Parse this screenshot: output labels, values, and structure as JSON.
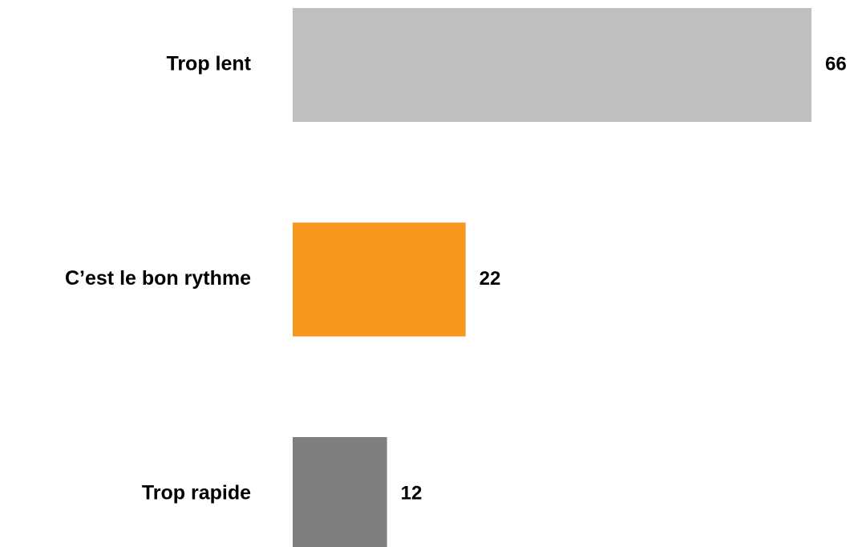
{
  "chart_data": {
    "type": "bar",
    "orientation": "horizontal",
    "categories": [
      "Trop lent",
      "C’est le bon rythme",
      "Trop rapide"
    ],
    "values": [
      66,
      22,
      12
    ],
    "colors": [
      "#bfbfbf",
      "#f7971e",
      "#7f7f7f"
    ]
  }
}
